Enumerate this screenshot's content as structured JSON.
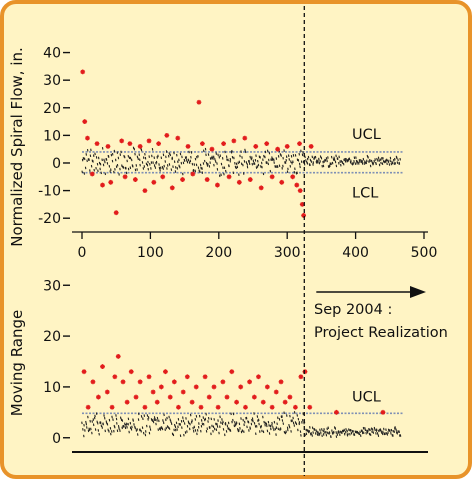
{
  "colors": {
    "frame_border": "#e8932a",
    "panel_background": "#fff4c4",
    "in_control_point": "#222222",
    "out_of_control_point": "#e21c1c",
    "control_limit_line": "#7f8fb5",
    "annotation_line": "#111111"
  },
  "annotation": {
    "line1": "Sep 2004 :",
    "line2": "Project Realization",
    "marker_x": 325,
    "arrow": "right"
  },
  "chart_data": [
    {
      "type": "scatter",
      "name": "individuals",
      "title": "",
      "ylabel": "Normalized Spiral Flow, in.",
      "xlabel": "",
      "xlim": [
        0,
        500
      ],
      "ylim": [
        -25,
        46
      ],
      "x_ticks": [
        0,
        100,
        200,
        300,
        400,
        500
      ],
      "x_tick_labels": [
        "0",
        "100",
        "200",
        "300",
        "400",
        "500"
      ],
      "y_ticks": [
        -20,
        -10,
        0,
        10,
        20,
        30,
        40
      ],
      "y_tick_labels": [
        "-20",
        "-10",
        "0",
        "10",
        "20",
        "30",
        "40"
      ],
      "control_limits": [
        {
          "label": "UCL",
          "value": 4
        },
        {
          "label": "LCL",
          "value": -3.5
        }
      ],
      "n_points": 465,
      "before_change": {
        "x_range": [
          0,
          325
        ],
        "mean": 0.5,
        "spread": 5.5
      },
      "after_change": {
        "x_range": [
          326,
          465
        ],
        "mean": 0.5,
        "spread": 2.2
      },
      "out_of_control_points": [
        {
          "x": 1,
          "y": 33
        },
        {
          "x": 4,
          "y": 15
        },
        {
          "x": 8,
          "y": 9
        },
        {
          "x": 15,
          "y": -4
        },
        {
          "x": 22,
          "y": 7
        },
        {
          "x": 30,
          "y": -8
        },
        {
          "x": 38,
          "y": 6
        },
        {
          "x": 42,
          "y": -7
        },
        {
          "x": 50,
          "y": -18
        },
        {
          "x": 58,
          "y": 8
        },
        {
          "x": 63,
          "y": -5
        },
        {
          "x": 70,
          "y": 7
        },
        {
          "x": 78,
          "y": -6
        },
        {
          "x": 85,
          "y": 6
        },
        {
          "x": 92,
          "y": -10
        },
        {
          "x": 98,
          "y": 8
        },
        {
          "x": 105,
          "y": -7
        },
        {
          "x": 112,
          "y": 7
        },
        {
          "x": 118,
          "y": -5
        },
        {
          "x": 124,
          "y": 10
        },
        {
          "x": 132,
          "y": -9
        },
        {
          "x": 140,
          "y": 9
        },
        {
          "x": 147,
          "y": -6
        },
        {
          "x": 155,
          "y": 6
        },
        {
          "x": 162,
          "y": -4
        },
        {
          "x": 171,
          "y": 22
        },
        {
          "x": 176,
          "y": 7
        },
        {
          "x": 183,
          "y": -6
        },
        {
          "x": 190,
          "y": 5
        },
        {
          "x": 198,
          "y": -8
        },
        {
          "x": 207,
          "y": 7
        },
        {
          "x": 215,
          "y": -5
        },
        {
          "x": 222,
          "y": 8
        },
        {
          "x": 230,
          "y": -7
        },
        {
          "x": 238,
          "y": 9
        },
        {
          "x": 246,
          "y": -6
        },
        {
          "x": 254,
          "y": 6
        },
        {
          "x": 262,
          "y": -9
        },
        {
          "x": 270,
          "y": 7
        },
        {
          "x": 278,
          "y": -5
        },
        {
          "x": 286,
          "y": 5
        },
        {
          "x": 292,
          "y": -7
        },
        {
          "x": 300,
          "y": 6
        },
        {
          "x": 308,
          "y": -5
        },
        {
          "x": 314,
          "y": -8
        },
        {
          "x": 319,
          "y": -10
        },
        {
          "x": 322,
          "y": -15
        },
        {
          "x": 324,
          "y": -19
        },
        {
          "x": 318,
          "y": 7
        },
        {
          "x": 335,
          "y": 6
        }
      ]
    },
    {
      "type": "scatter",
      "name": "moving_range",
      "title": "",
      "ylabel": "Moving Range",
      "xlabel": "",
      "xlim": [
        0,
        500
      ],
      "ylim": [
        -3,
        33
      ],
      "x_ticks": [],
      "y_ticks": [
        0,
        10,
        20,
        30
      ],
      "y_tick_labels": [
        "0",
        "10",
        "20",
        "30"
      ],
      "control_limits": [
        {
          "label": "UCL",
          "value": 4.8
        }
      ],
      "n_points": 465,
      "before_change": {
        "x_range": [
          0,
          325
        ],
        "mean": 2.6,
        "spread": 2.6
      },
      "after_change": {
        "x_range": [
          326,
          465
        ],
        "mean": 1.2,
        "spread": 1.1
      },
      "out_of_control_points": [
        {
          "x": 3,
          "y": 13
        },
        {
          "x": 9,
          "y": 6
        },
        {
          "x": 16,
          "y": 11
        },
        {
          "x": 24,
          "y": 8
        },
        {
          "x": 30,
          "y": 14
        },
        {
          "x": 37,
          "y": 9
        },
        {
          "x": 44,
          "y": 6
        },
        {
          "x": 48,
          "y": 12
        },
        {
          "x": 53,
          "y": 16
        },
        {
          "x": 60,
          "y": 11
        },
        {
          "x": 66,
          "y": 7
        },
        {
          "x": 72,
          "y": 13
        },
        {
          "x": 79,
          "y": 8
        },
        {
          "x": 85,
          "y": 11
        },
        {
          "x": 92,
          "y": 6
        },
        {
          "x": 98,
          "y": 12
        },
        {
          "x": 104,
          "y": 9
        },
        {
          "x": 110,
          "y": 7
        },
        {
          "x": 116,
          "y": 10
        },
        {
          "x": 122,
          "y": 13
        },
        {
          "x": 129,
          "y": 8
        },
        {
          "x": 135,
          "y": 11
        },
        {
          "x": 141,
          "y": 6
        },
        {
          "x": 148,
          "y": 9
        },
        {
          "x": 154,
          "y": 12
        },
        {
          "x": 161,
          "y": 7
        },
        {
          "x": 167,
          "y": 10
        },
        {
          "x": 174,
          "y": 6
        },
        {
          "x": 180,
          "y": 12
        },
        {
          "x": 186,
          "y": 8
        },
        {
          "x": 193,
          "y": 10
        },
        {
          "x": 199,
          "y": 6
        },
        {
          "x": 206,
          "y": 11
        },
        {
          "x": 212,
          "y": 8
        },
        {
          "x": 219,
          "y": 13
        },
        {
          "x": 226,
          "y": 7
        },
        {
          "x": 232,
          "y": 10
        },
        {
          "x": 239,
          "y": 6
        },
        {
          "x": 245,
          "y": 11
        },
        {
          "x": 252,
          "y": 8
        },
        {
          "x": 258,
          "y": 12
        },
        {
          "x": 265,
          "y": 7
        },
        {
          "x": 271,
          "y": 10
        },
        {
          "x": 278,
          "y": 6
        },
        {
          "x": 284,
          "y": 9
        },
        {
          "x": 291,
          "y": 11
        },
        {
          "x": 297,
          "y": 7
        },
        {
          "x": 304,
          "y": 8
        },
        {
          "x": 312,
          "y": 6
        },
        {
          "x": 320,
          "y": 12
        },
        {
          "x": 326,
          "y": 13
        },
        {
          "x": 333,
          "y": 6
        },
        {
          "x": 372,
          "y": 5
        },
        {
          "x": 440,
          "y": 5
        }
      ]
    }
  ]
}
